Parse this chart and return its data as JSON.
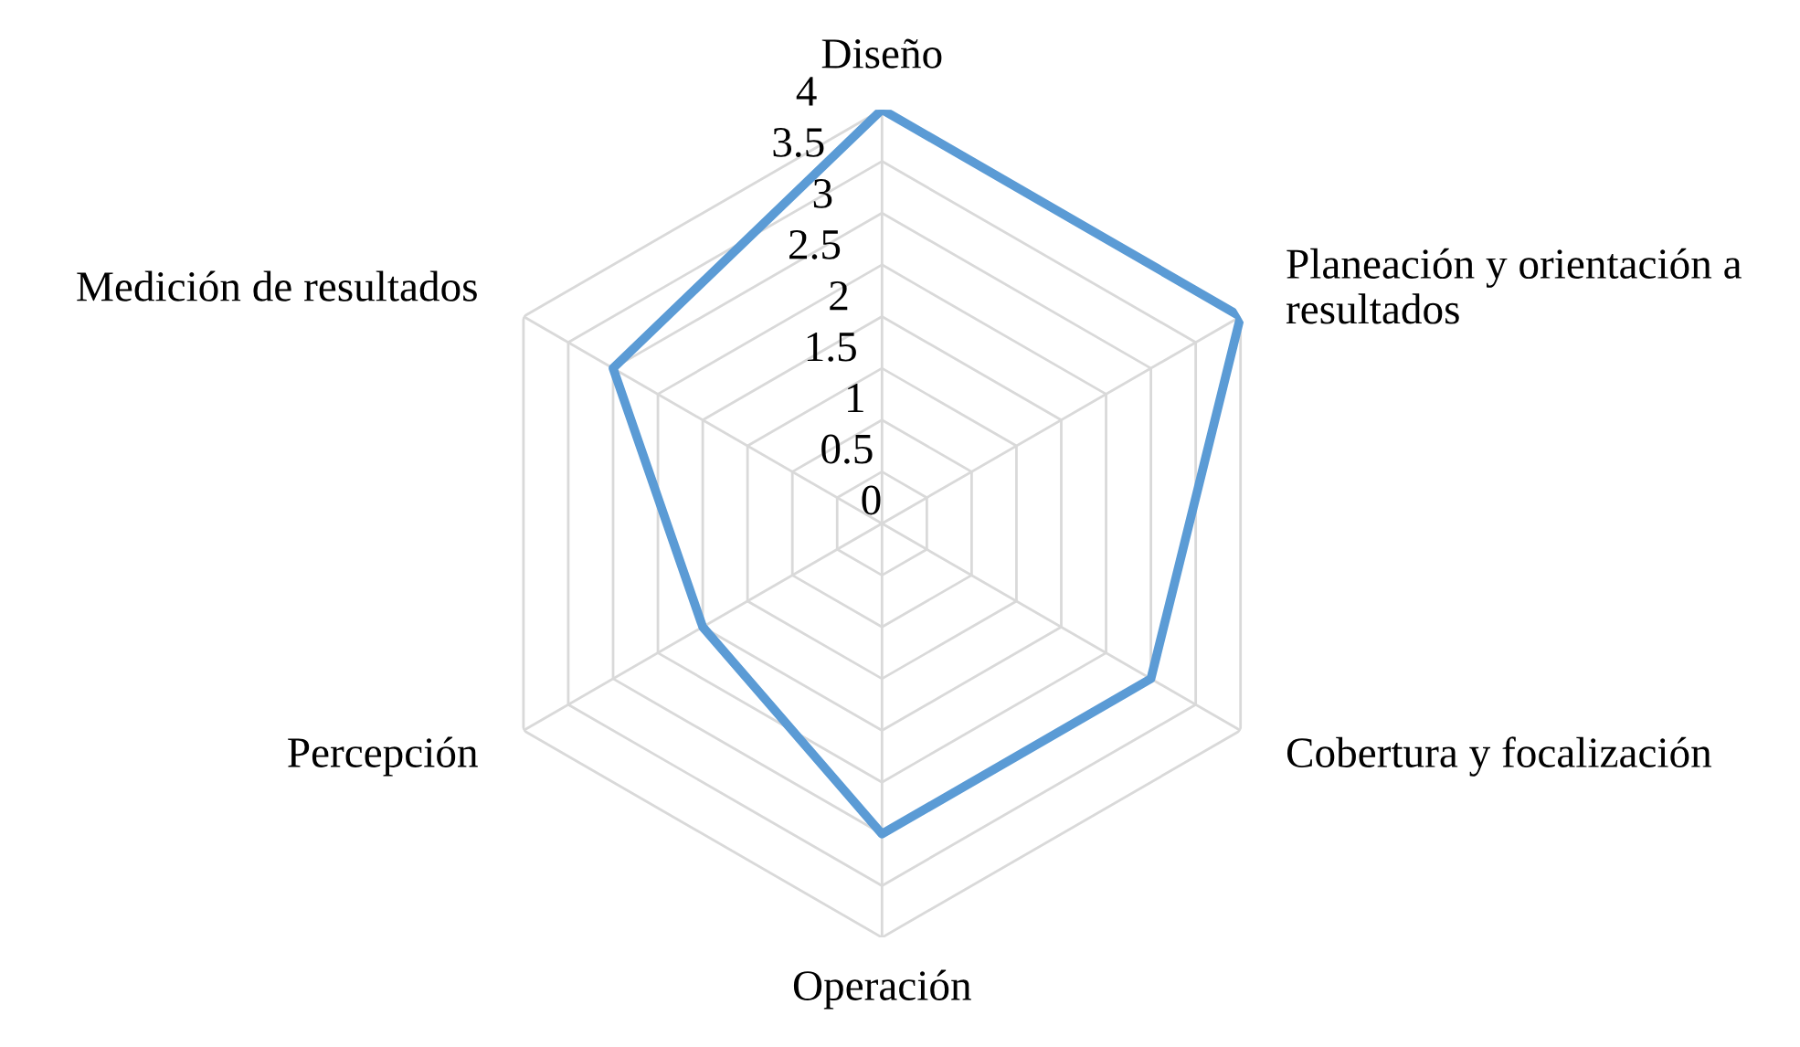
{
  "chart_data": {
    "type": "radar",
    "categories": [
      "Diseño",
      "Planeación y orientación a\nresultados",
      "Cobertura y focalización",
      "Operación",
      "Percepción",
      "Medición de resultados"
    ],
    "series": [
      {
        "color": "#5b9bd5",
        "values": [
          4,
          4,
          3,
          3,
          2,
          3
        ]
      }
    ],
    "ylim": [
      0,
      4
    ],
    "yticks": [
      0,
      0.5,
      1,
      1.5,
      2,
      2.5,
      3,
      3.5,
      4
    ],
    "grid": true,
    "marker": "none",
    "line_style": "solid"
  }
}
